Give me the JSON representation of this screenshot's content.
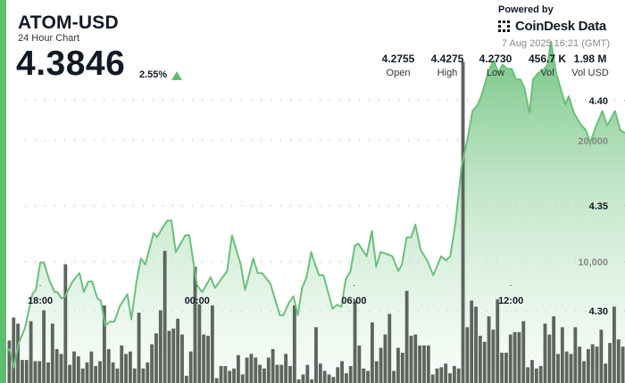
{
  "header": {
    "title": "ATOM-USD",
    "subtitle": "24 Hour Chart",
    "price": "4.3846",
    "change": "2.55%",
    "change_direction": "up",
    "powered_by": "Powered by",
    "brand": "CoinDesk Data",
    "timestamp": "7 Aug 2025 16:21 (GMT)"
  },
  "stats": [
    {
      "value": "4.2755",
      "label": "Open"
    },
    {
      "value": "4.4275",
      "label": "High"
    },
    {
      "value": "4.2730",
      "label": "Low"
    },
    {
      "value": "456.7 K",
      "label": "Vol"
    },
    {
      "value": "1.98 M",
      "label": "Vol USD"
    }
  ],
  "colors": {
    "accent": "#5fbf70",
    "line": "#6cbf7c",
    "volume": "#5e645e",
    "up": "#5fbf70"
  },
  "chart_data": {
    "type": "line",
    "grid": true,
    "price_axis": {
      "ticks": [
        "4.30",
        "4.35",
        "4.40"
      ],
      "tick_values": [
        4.3,
        4.35,
        4.4
      ],
      "ylim": [
        4.2658,
        4.4477
      ]
    },
    "volume_axis": {
      "ticks": [
        "10,000",
        "20,000"
      ],
      "tick_values": [
        10000,
        20000
      ],
      "ylim": [
        0,
        31600
      ]
    },
    "x_ticks": [
      "18:00",
      "00:00",
      "06:00",
      "12:00"
    ],
    "price_series": [
      [
        "16:44",
        4.281
      ],
      [
        "16:50",
        4.282
      ],
      [
        "16:59",
        4.273
      ],
      [
        "17:11",
        4.285
      ],
      [
        "17:25",
        4.292
      ],
      [
        "17:42",
        4.308
      ],
      [
        "17:50",
        4.31
      ],
      [
        "18:00",
        4.323
      ],
      [
        "18:08",
        4.323
      ],
      [
        "18:22",
        4.314
      ],
      [
        "18:33",
        4.309
      ],
      [
        "18:39",
        4.309
      ],
      [
        "18:49",
        4.306
      ],
      [
        "18:57",
        4.307
      ],
      [
        "19:14",
        4.314
      ],
      [
        "19:30",
        4.318
      ],
      [
        "19:40",
        4.309
      ],
      [
        "19:50",
        4.314
      ],
      [
        "19:59",
        4.314
      ],
      [
        "20:11",
        4.306
      ],
      [
        "20:19",
        4.305
      ],
      [
        "20:29",
        4.293
      ],
      [
        "20:40",
        4.295
      ],
      [
        "20:50",
        4.295
      ],
      [
        "21:02",
        4.302
      ],
      [
        "21:20",
        4.308
      ],
      [
        "21:29",
        4.296
      ],
      [
        "21:41",
        4.314
      ],
      [
        "21:51",
        4.325
      ],
      [
        "22:01",
        4.322
      ],
      [
        "22:20",
        4.337
      ],
      [
        "22:28",
        4.335
      ],
      [
        "22:42",
        4.34
      ],
      [
        "22:52",
        4.343
      ],
      [
        "23:01",
        4.343
      ],
      [
        "23:11",
        4.328
      ],
      [
        "23:33",
        4.336
      ],
      [
        "23:42",
        4.336
      ],
      [
        "00:00",
        4.312
      ],
      [
        "00:12",
        4.309
      ],
      [
        "00:31",
        4.316
      ],
      [
        "00:41",
        4.311
      ],
      [
        "01:09",
        4.319
      ],
      [
        "01:20",
        4.336
      ],
      [
        "01:40",
        4.322
      ],
      [
        "01:50",
        4.31
      ],
      [
        "02:09",
        4.325
      ],
      [
        "02:19",
        4.318
      ],
      [
        "02:29",
        4.318
      ],
      [
        "02:48",
        4.313
      ],
      [
        "03:10",
        4.298
      ],
      [
        "03:18",
        4.298
      ],
      [
        "03:31",
        4.304
      ],
      [
        "03:41",
        4.307
      ],
      [
        "03:51",
        4.298
      ],
      [
        "04:01",
        4.311
      ],
      [
        "04:11",
        4.316
      ],
      [
        "04:22",
        4.328
      ],
      [
        "04:26",
        4.325
      ],
      [
        "04:40",
        4.317
      ],
      [
        "04:50",
        4.317
      ],
      [
        "05:11",
        4.301
      ],
      [
        "05:21",
        4.303
      ],
      [
        "05:31",
        4.302
      ],
      [
        "05:41",
        4.315
      ],
      [
        "05:52",
        4.319
      ],
      [
        "06:02",
        4.331
      ],
      [
        "06:10",
        4.332
      ],
      [
        "06:29",
        4.326
      ],
      [
        "06:41",
        4.338
      ],
      [
        "06:51",
        4.321
      ],
      [
        "07:01",
        4.328
      ],
      [
        "07:16",
        4.327
      ],
      [
        "07:28",
        4.326
      ],
      [
        "07:42",
        4.319
      ],
      [
        "07:50",
        4.322
      ],
      [
        "08:01",
        4.335
      ],
      [
        "08:11",
        4.335
      ],
      [
        "08:21",
        4.341
      ],
      [
        "08:33",
        4.329
      ],
      [
        "08:48",
        4.324
      ],
      [
        "09:02",
        4.317
      ],
      [
        "09:20",
        4.326
      ],
      [
        "09:31",
        4.324
      ],
      [
        "09:41",
        4.326
      ],
      [
        "09:53",
        4.342
      ],
      [
        "10:07",
        4.369
      ],
      [
        "10:20",
        4.381
      ],
      [
        "10:32",
        4.395
      ],
      [
        "10:44",
        4.398
      ],
      [
        "10:52",
        4.402
      ],
      [
        "11:09",
        4.414
      ],
      [
        "11:21",
        4.419
      ],
      [
        "11:31",
        4.413
      ],
      [
        "11:41",
        4.417
      ],
      [
        "11:52",
        4.415
      ],
      [
        "12:02",
        4.415
      ],
      [
        "12:12",
        4.41
      ],
      [
        "12:22",
        4.41
      ],
      [
        "12:31",
        4.406
      ],
      [
        "12:43",
        4.394
      ],
      [
        "12:51",
        4.41
      ],
      [
        "13:03",
        4.413
      ],
      [
        "13:17",
        4.415
      ],
      [
        "13:24",
        4.417
      ],
      [
        "13:32",
        4.428
      ],
      [
        "13:44",
        4.413
      ],
      [
        "13:54",
        4.406
      ],
      [
        "14:05",
        4.398
      ],
      [
        "14:13",
        4.402
      ],
      [
        "14:25",
        4.394
      ],
      [
        "14:39",
        4.389
      ],
      [
        "14:52",
        4.386
      ],
      [
        "15:02",
        4.38
      ],
      [
        "15:16",
        4.388
      ],
      [
        "15:30",
        4.395
      ],
      [
        "15:41",
        4.388
      ],
      [
        "15:59",
        4.395
      ],
      [
        "16:11",
        4.386
      ],
      [
        "16:22",
        4.3846
      ]
    ],
    "volume_series": [
      3500,
      5400,
      4900,
      1900,
      1900,
      5100,
      1800,
      1800,
      6000,
      1700,
      4900,
      2800,
      2400,
      9800,
      1500,
      2600,
      2200,
      1200,
      1700,
      2600,
      1400,
      1800,
      6400,
      2800,
      1700,
      1200,
      3100,
      2400,
      2600,
      1200,
      5800,
      1200,
      1700,
      3200,
      4100,
      6000,
      10900,
      4300,
      4500,
      5300,
      4000,
      600,
      2600,
      9600,
      6500,
      4000,
      3900,
      6400,
      400,
      1400,
      1400,
      1000,
      1200,
      2300,
      700,
      2100,
      2400,
      2100,
      1500,
      1200,
      2100,
      2800,
      1500,
      1500,
      2400,
      1400,
      6400,
      300,
      700,
      1500,
      300,
      4600,
      1600,
      1000,
      700,
      500,
      1300,
      1800,
      800,
      1400,
      6800,
      3100,
      1200,
      1000,
      5000,
      1800,
      2900,
      4000,
      5700,
      1000,
      2900,
      2500,
      7600,
      3900,
      4000,
      3100,
      3100,
      3100,
      700,
      1200,
      1300,
      1600,
      800,
      1400,
      1200,
      26500,
      4600,
      6800,
      6300,
      3900,
      3400,
      5500,
      4400,
      6900,
      2500,
      2500,
      4000,
      4200,
      4200,
      5100,
      1300,
      1900,
      1200,
      1400,
      4900,
      4000,
      5500,
      2400,
      4600,
      2600,
      2400,
      4600,
      3000,
      1800,
      2800,
      3200,
      3000,
      4400,
      1600,
      3300,
      6300,
      3600,
      3000
    ]
  }
}
